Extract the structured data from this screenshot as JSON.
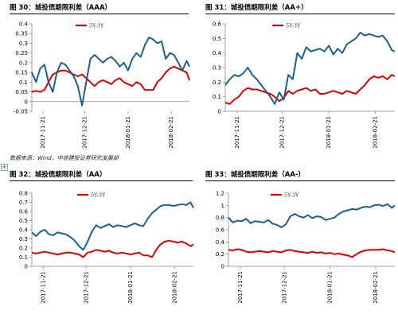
{
  "source_note": "数据来源：Wind，中信建投证券研究发展部",
  "expand_glyph": "+",
  "series_colors": {
    "5Y-3Y": "#e10000",
    "5Y": "#205f8a"
  },
  "chart_data": [
    {
      "type": "line",
      "title": "图 30：城投债期限利差（AAA）",
      "x_ticks": [
        "2017-11-21",
        "2017-12-21",
        "2018-01-21",
        "2018-02-21"
      ],
      "x_range": [
        "2017-11-13",
        "2018-03-06"
      ],
      "ylim": [
        -0.05,
        0.4
      ],
      "y_ticks": [
        -0.05,
        0,
        0.05,
        0.1,
        0.15,
        0.2,
        0.25,
        0.3,
        0.35,
        0.4
      ],
      "y_tick_labels": [
        "-0.05",
        "0",
        "0.05",
        "0.1",
        "0.15",
        "0.2",
        "0.25",
        "0.3",
        "0.35",
        "0.4"
      ],
      "legend_label": "5Y-3Y",
      "series": [
        {
          "name": "5Y-3Y",
          "color": "#e10000",
          "x": [
            "2017-11-13",
            "2017-11-16",
            "2017-11-19",
            "2017-11-22",
            "2017-11-25",
            "2017-11-28",
            "2017-12-01",
            "2017-12-04",
            "2017-12-07",
            "2017-12-10",
            "2017-12-13",
            "2017-12-16",
            "2017-12-19",
            "2017-12-22",
            "2017-12-25",
            "2017-12-28",
            "2017-12-31",
            "2018-01-03",
            "2018-01-06",
            "2018-01-09",
            "2018-01-12",
            "2018-01-15",
            "2018-01-18",
            "2018-01-21",
            "2018-01-24",
            "2018-01-27",
            "2018-01-30",
            "2018-02-02",
            "2018-02-05",
            "2018-02-08",
            "2018-02-11",
            "2018-02-14",
            "2018-02-17",
            "2018-02-20",
            "2018-02-23",
            "2018-02-26",
            "2018-03-01",
            "2018-03-04",
            "2018-03-06"
          ],
          "values": [
            0.05,
            0.055,
            0.05,
            0.06,
            0.1,
            0.14,
            0.15,
            0.16,
            0.16,
            0.15,
            0.14,
            0.13,
            0.14,
            0.12,
            0.1,
            0.08,
            0.1,
            0.11,
            0.1,
            0.09,
            0.11,
            0.12,
            0.1,
            0.09,
            0.08,
            0.1,
            0.09,
            0.06,
            0.06,
            0.06,
            0.1,
            0.12,
            0.15,
            0.17,
            0.18,
            0.17,
            0.16,
            0.15,
            0.11
          ]
        },
        {
          "name": "",
          "color": "#205f8a",
          "x": [
            "2017-11-13",
            "2017-11-16",
            "2017-11-19",
            "2017-11-22",
            "2017-11-25",
            "2017-11-28",
            "2017-12-01",
            "2017-12-04",
            "2017-12-07",
            "2017-12-10",
            "2017-12-13",
            "2017-12-16",
            "2017-12-19",
            "2017-12-22",
            "2017-12-25",
            "2017-12-28",
            "2017-12-31",
            "2018-01-03",
            "2018-01-06",
            "2018-01-09",
            "2018-01-12",
            "2018-01-15",
            "2018-01-18",
            "2018-01-21",
            "2018-01-24",
            "2018-01-27",
            "2018-01-30",
            "2018-02-02",
            "2018-02-05",
            "2018-02-08",
            "2018-02-11",
            "2018-02-14",
            "2018-02-17",
            "2018-02-20",
            "2018-02-23",
            "2018-02-26",
            "2018-03-01",
            "2018-03-04",
            "2018-03-06"
          ],
          "values": [
            0.15,
            0.1,
            0.17,
            0.19,
            0.1,
            0.05,
            0.15,
            0.2,
            0.19,
            0.16,
            0.13,
            0.08,
            -0.02,
            0.1,
            0.22,
            0.24,
            0.22,
            0.2,
            0.22,
            0.23,
            0.21,
            0.18,
            0.2,
            0.16,
            0.22,
            0.25,
            0.23,
            0.29,
            0.33,
            0.32,
            0.3,
            0.31,
            0.22,
            0.25,
            0.24,
            0.2,
            0.16,
            0.21,
            0.18
          ]
        }
      ]
    },
    {
      "type": "line",
      "title": "图 31：城投债期限利差（AA+）",
      "x_ticks": [
        "2017-11-21",
        "2017-12-21",
        "2018-01-21",
        "2018-02-21"
      ],
      "x_range": [
        "2017-11-13",
        "2018-03-06"
      ],
      "ylim": [
        0,
        0.6
      ],
      "y_ticks": [
        0,
        0.1,
        0.2,
        0.3,
        0.4,
        0.5,
        0.6
      ],
      "y_tick_labels": [
        "0",
        "0.1",
        "0.2",
        "0.3",
        "0.4",
        "0.5",
        "0.6"
      ],
      "legend_label": "5Y-3Y",
      "series": [
        {
          "name": "5Y-3Y",
          "color": "#e10000",
          "x": [
            "2017-11-13",
            "2017-11-16",
            "2017-11-19",
            "2017-11-22",
            "2017-11-25",
            "2017-11-28",
            "2017-12-01",
            "2017-12-04",
            "2017-12-07",
            "2017-12-10",
            "2017-12-13",
            "2017-12-16",
            "2017-12-19",
            "2017-12-22",
            "2017-12-25",
            "2017-12-28",
            "2017-12-31",
            "2018-01-03",
            "2018-01-06",
            "2018-01-09",
            "2018-01-12",
            "2018-01-15",
            "2018-01-18",
            "2018-01-21",
            "2018-01-24",
            "2018-01-27",
            "2018-01-30",
            "2018-02-02",
            "2018-02-05",
            "2018-02-08",
            "2018-02-11",
            "2018-02-14",
            "2018-02-17",
            "2018-02-20",
            "2018-02-23",
            "2018-02-26",
            "2018-03-01",
            "2018-03-04",
            "2018-03-06"
          ],
          "values": [
            0.06,
            0.05,
            0.08,
            0.1,
            0.14,
            0.16,
            0.15,
            0.15,
            0.14,
            0.13,
            0.12,
            0.1,
            0.07,
            0.09,
            0.14,
            0.12,
            0.14,
            0.15,
            0.16,
            0.14,
            0.15,
            0.12,
            0.12,
            0.13,
            0.14,
            0.13,
            0.12,
            0.14,
            0.13,
            0.12,
            0.15,
            0.18,
            0.22,
            0.24,
            0.23,
            0.24,
            0.22,
            0.25,
            0.24
          ]
        },
        {
          "name": "",
          "color": "#205f8a",
          "x": [
            "2017-11-13",
            "2017-11-16",
            "2017-11-19",
            "2017-11-22",
            "2017-11-25",
            "2017-11-28",
            "2017-12-01",
            "2017-12-04",
            "2017-12-07",
            "2017-12-10",
            "2017-12-13",
            "2017-12-16",
            "2017-12-19",
            "2017-12-22",
            "2017-12-25",
            "2017-12-28",
            "2017-12-31",
            "2018-01-03",
            "2018-01-06",
            "2018-01-09",
            "2018-01-12",
            "2018-01-15",
            "2018-01-18",
            "2018-01-21",
            "2018-01-24",
            "2018-01-27",
            "2018-01-30",
            "2018-02-02",
            "2018-02-05",
            "2018-02-08",
            "2018-02-11",
            "2018-02-14",
            "2018-02-17",
            "2018-02-20",
            "2018-02-23",
            "2018-02-26",
            "2018-03-01",
            "2018-03-04",
            "2018-03-06"
          ],
          "values": [
            0.18,
            0.22,
            0.25,
            0.24,
            0.26,
            0.3,
            0.25,
            0.22,
            0.18,
            0.14,
            0.1,
            0.05,
            0.13,
            0.08,
            0.25,
            0.22,
            0.4,
            0.36,
            0.44,
            0.41,
            0.42,
            0.43,
            0.41,
            0.45,
            0.39,
            0.43,
            0.4,
            0.46,
            0.48,
            0.5,
            0.54,
            0.52,
            0.53,
            0.52,
            0.51,
            0.52,
            0.48,
            0.42,
            0.41
          ]
        }
      ]
    },
    {
      "type": "line",
      "title": "图 32：城投债期限利差（AA）",
      "x_ticks": [
        "2017-11-21",
        "2017-12-21",
        "2018-01-21",
        "2018-02-21"
      ],
      "x_range": [
        "2017-11-13",
        "2018-03-06"
      ],
      "ylim": [
        0,
        0.8
      ],
      "y_ticks": [
        0,
        0.1,
        0.2,
        0.3,
        0.4,
        0.5,
        0.6,
        0.7,
        0.8
      ],
      "y_tick_labels": [
        "0",
        "0.1",
        "0.2",
        "0.3",
        "0.4",
        "0.5",
        "0.6",
        "0.7",
        "0.8"
      ],
      "legend_label": "5Y-3Y",
      "series": [
        {
          "name": "5Y-3Y",
          "color": "#e10000",
          "x": [
            "2017-11-13",
            "2017-11-16",
            "2017-11-19",
            "2017-11-22",
            "2017-11-25",
            "2017-11-28",
            "2017-12-01",
            "2017-12-04",
            "2017-12-07",
            "2017-12-10",
            "2017-12-13",
            "2017-12-16",
            "2017-12-19",
            "2017-12-22",
            "2017-12-25",
            "2017-12-28",
            "2017-12-31",
            "2018-01-03",
            "2018-01-06",
            "2018-01-09",
            "2018-01-12",
            "2018-01-15",
            "2018-01-18",
            "2018-01-21",
            "2018-01-24",
            "2018-01-27",
            "2018-01-30",
            "2018-02-02",
            "2018-02-05",
            "2018-02-08",
            "2018-02-11",
            "2018-02-14",
            "2018-02-17",
            "2018-02-20",
            "2018-02-23",
            "2018-02-26",
            "2018-03-01",
            "2018-03-04",
            "2018-03-06"
          ],
          "values": [
            0.15,
            0.14,
            0.15,
            0.16,
            0.15,
            0.14,
            0.13,
            0.14,
            0.15,
            0.15,
            0.14,
            0.13,
            0.1,
            0.15,
            0.16,
            0.18,
            0.17,
            0.16,
            0.17,
            0.15,
            0.14,
            0.15,
            0.14,
            0.13,
            0.14,
            0.15,
            0.12,
            0.12,
            0.1,
            0.18,
            0.24,
            0.27,
            0.28,
            0.27,
            0.26,
            0.27,
            0.25,
            0.22,
            0.24
          ]
        },
        {
          "name": "",
          "color": "#205f8a",
          "x": [
            "2017-11-13",
            "2017-11-16",
            "2017-11-19",
            "2017-11-22",
            "2017-11-25",
            "2017-11-28",
            "2017-12-01",
            "2017-12-04",
            "2017-12-07",
            "2017-12-10",
            "2017-12-13",
            "2017-12-16",
            "2017-12-19",
            "2017-12-22",
            "2017-12-25",
            "2017-12-28",
            "2017-12-31",
            "2018-01-03",
            "2018-01-06",
            "2018-01-09",
            "2018-01-12",
            "2018-01-15",
            "2018-01-18",
            "2018-01-21",
            "2018-01-24",
            "2018-01-27",
            "2018-01-30",
            "2018-02-02",
            "2018-02-05",
            "2018-02-08",
            "2018-02-11",
            "2018-02-14",
            "2018-02-17",
            "2018-02-20",
            "2018-02-23",
            "2018-02-26",
            "2018-03-01",
            "2018-03-04",
            "2018-03-06"
          ],
          "values": [
            0.37,
            0.33,
            0.38,
            0.4,
            0.35,
            0.34,
            0.37,
            0.36,
            0.35,
            0.32,
            0.28,
            0.22,
            0.18,
            0.27,
            0.38,
            0.45,
            0.42,
            0.44,
            0.46,
            0.43,
            0.45,
            0.44,
            0.43,
            0.45,
            0.47,
            0.45,
            0.44,
            0.52,
            0.58,
            0.62,
            0.66,
            0.67,
            0.67,
            0.66,
            0.67,
            0.68,
            0.67,
            0.7,
            0.64
          ]
        }
      ]
    },
    {
      "type": "line",
      "title": "图 33：城投债期限利差（AA-）",
      "x_ticks": [
        "2017-11-21",
        "2017-12-21",
        "2018-01-21",
        "2018-02-21"
      ],
      "x_range": [
        "2017-11-13",
        "2018-03-06"
      ],
      "ylim": [
        0,
        1.2
      ],
      "y_ticks": [
        0,
        0.2,
        0.4,
        0.6,
        0.8,
        1,
        1.2
      ],
      "y_tick_labels": [
        "0",
        "0.2",
        "0.4",
        "0.6",
        "0.8",
        "1",
        "1.2"
      ],
      "legend_label": "5Y-3Y",
      "series": [
        {
          "name": "5Y-3Y",
          "color": "#e10000",
          "x": [
            "2017-11-13",
            "2017-11-16",
            "2017-11-19",
            "2017-11-22",
            "2017-11-25",
            "2017-11-28",
            "2017-12-01",
            "2017-12-04",
            "2017-12-07",
            "2017-12-10",
            "2017-12-13",
            "2017-12-16",
            "2017-12-19",
            "2017-12-22",
            "2017-12-25",
            "2017-12-28",
            "2017-12-31",
            "2018-01-03",
            "2018-01-06",
            "2018-01-09",
            "2018-01-12",
            "2018-01-15",
            "2018-01-18",
            "2018-01-21",
            "2018-01-24",
            "2018-01-27",
            "2018-01-30",
            "2018-02-02",
            "2018-02-05",
            "2018-02-08",
            "2018-02-11",
            "2018-02-14",
            "2018-02-17",
            "2018-02-20",
            "2018-02-23",
            "2018-02-26",
            "2018-03-01",
            "2018-03-04",
            "2018-03-06"
          ],
          "values": [
            0.27,
            0.26,
            0.28,
            0.27,
            0.24,
            0.23,
            0.24,
            0.25,
            0.24,
            0.23,
            0.25,
            0.24,
            0.23,
            0.26,
            0.27,
            0.25,
            0.24,
            0.23,
            0.22,
            0.24,
            0.22,
            0.23,
            0.21,
            0.22,
            0.2,
            0.21,
            0.19,
            0.18,
            0.15,
            0.2,
            0.24,
            0.26,
            0.27,
            0.27,
            0.27,
            0.28,
            0.26,
            0.25,
            0.23
          ]
        },
        {
          "name": "",
          "color": "#205f8a",
          "x": [
            "2017-11-13",
            "2017-11-16",
            "2017-11-19",
            "2017-11-22",
            "2017-11-25",
            "2017-11-28",
            "2017-12-01",
            "2017-12-04",
            "2017-12-07",
            "2017-12-10",
            "2017-12-13",
            "2017-12-16",
            "2017-12-19",
            "2017-12-22",
            "2017-12-25",
            "2017-12-28",
            "2017-12-31",
            "2018-01-03",
            "2018-01-06",
            "2018-01-09",
            "2018-01-12",
            "2018-01-15",
            "2018-01-18",
            "2018-01-21",
            "2018-01-24",
            "2018-01-27",
            "2018-01-30",
            "2018-02-02",
            "2018-02-05",
            "2018-02-08",
            "2018-02-11",
            "2018-02-14",
            "2018-02-17",
            "2018-02-20",
            "2018-02-23",
            "2018-02-26",
            "2018-03-01",
            "2018-03-04",
            "2018-03-06"
          ],
          "values": [
            0.8,
            0.72,
            0.75,
            0.74,
            0.78,
            0.71,
            0.74,
            0.73,
            0.72,
            0.76,
            0.7,
            0.68,
            0.64,
            0.69,
            0.82,
            0.86,
            0.82,
            0.8,
            0.84,
            0.79,
            0.82,
            0.81,
            0.76,
            0.78,
            0.8,
            0.86,
            0.9,
            0.92,
            0.94,
            0.93,
            0.96,
            0.98,
            0.97,
            1.0,
            1.01,
            0.99,
            1.02,
            0.96,
            1.0
          ]
        }
      ]
    }
  ]
}
